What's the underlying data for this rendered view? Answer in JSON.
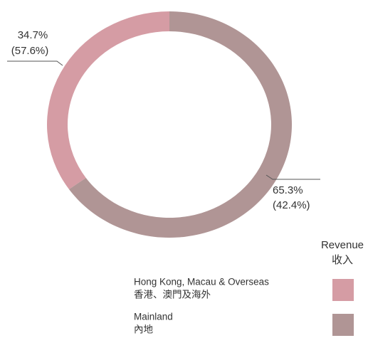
{
  "chart_data": {
    "type": "donut",
    "legend_title": "Revenue",
    "legend_title_zh": "收入",
    "categories": [
      "Hong Kong, Macau & Overseas",
      "Mainland"
    ],
    "categories_zh": [
      "香港、澳門及海外",
      "內地"
    ],
    "values": [
      34.7,
      65.3
    ],
    "value_labels": [
      "34.7%",
      "65.3%"
    ],
    "secondary_labels": [
      "(57.6%)",
      "(42.4%)"
    ],
    "colors": [
      "#d59ca4",
      "#b09595"
    ],
    "direction": [
      "counterclockwise",
      "clockwise"
    ]
  }
}
